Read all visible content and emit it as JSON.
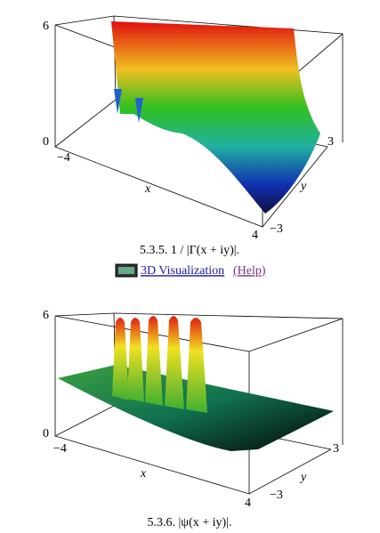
{
  "figures": [
    {
      "z_top": "6",
      "z_bottom": "0",
      "x_min": "−4",
      "x_max": "4",
      "x_label": "x",
      "y_min": "−3",
      "y_max": "3",
      "y_label": "y",
      "caption": "5.3.5. 1 / |Γ(x + iy)|.",
      "link": "3D Visualization",
      "help": "(Help)"
    },
    {
      "z_top": "6",
      "z_bottom": "0",
      "x_min": "−4",
      "x_max": "4",
      "x_label": "x",
      "y_min": "−3",
      "y_max": "3",
      "y_label": "y",
      "caption": "5.3.6. |ψ(x + iy)|."
    }
  ]
}
